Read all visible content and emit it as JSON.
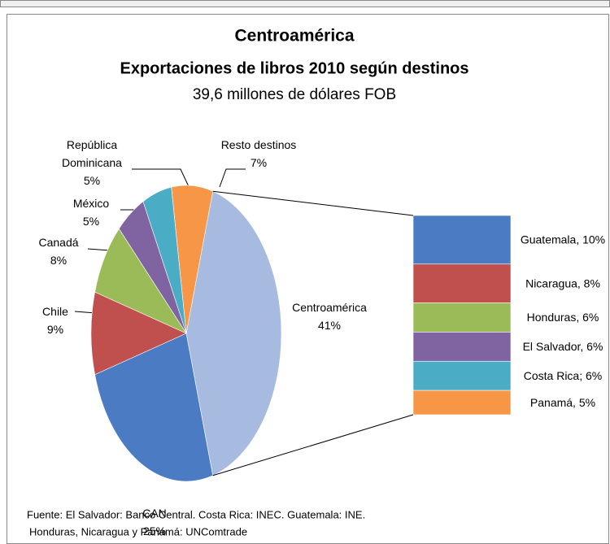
{
  "chart_data": {
    "type": "pie",
    "title": "Centroamérica",
    "subtitle": "Exportaciones de libros 2010 según destinos",
    "note": "39,6 millones de dólares FOB",
    "categories": [
      "Centroamérica",
      "Resto destinos",
      "República Dominicana",
      "México",
      "Canadá",
      "Chile",
      "CAN"
    ],
    "values": [
      41,
      7,
      5,
      5,
      8,
      9,
      25
    ],
    "value_labels": [
      "41%",
      "7%",
      "5%",
      "5%",
      "8%",
      "9%",
      "25%"
    ],
    "colors": [
      "#a7bbe0",
      "#f79646",
      "#4bacc6",
      "#8064a2",
      "#9bbb59",
      "#c0504d",
      "#4a7bc3"
    ],
    "breakdown": {
      "labels": [
        "Guatemala, 10%",
        "Nicaragua, 8%",
        "Honduras, 6%",
        "El Salvador, 6%",
        "Costa Rica; 6%",
        "Panamá, 5%"
      ],
      "values": [
        10,
        8,
        6,
        6,
        6,
        5
      ],
      "colors": [
        "#4a7bc3",
        "#c0504d",
        "#9bbb59",
        "#8064a2",
        "#4bacc6",
        "#f79646"
      ]
    },
    "source": [
      "Fuente:  El Salvador: Banco Central. Costa Rica: INEC. Guatemala: INE.",
      "Honduras, Nicaragua y Panamá: UNComtrade"
    ]
  }
}
